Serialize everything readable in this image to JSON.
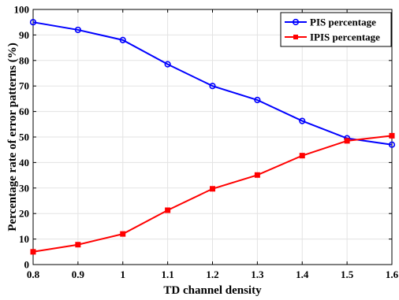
{
  "chart_data": {
    "type": "line",
    "xlabel": "TD channel density",
    "ylabel": "Percentage rate of error patterns (%)",
    "xlim": [
      0.8,
      1.6
    ],
    "ylim": [
      0,
      100
    ],
    "x": [
      0.8,
      0.9,
      1.0,
      1.1,
      1.2,
      1.3,
      1.4,
      1.5,
      1.6
    ],
    "x_ticks": [
      "0.8",
      "0.9",
      "1",
      "1.1",
      "1.2",
      "1.3",
      "1.4",
      "1.5",
      "1.6"
    ],
    "y_ticks": [
      "0",
      "10",
      "20",
      "30",
      "40",
      "50",
      "60",
      "70",
      "80",
      "90",
      "100"
    ],
    "grid": true,
    "legend_position": "top-right",
    "series": [
      {
        "name": "PIS percentage",
        "color": "#0000ff",
        "marker": "circle",
        "values": [
          95,
          92,
          88,
          78.5,
          70,
          64.5,
          56.3,
          49.5,
          47
        ]
      },
      {
        "name": "IPIS percentage",
        "color": "#ff0000",
        "marker": "square",
        "values": [
          5,
          7.8,
          12,
          21.3,
          29.7,
          35.1,
          42.7,
          48.5,
          50.5
        ]
      }
    ]
  }
}
